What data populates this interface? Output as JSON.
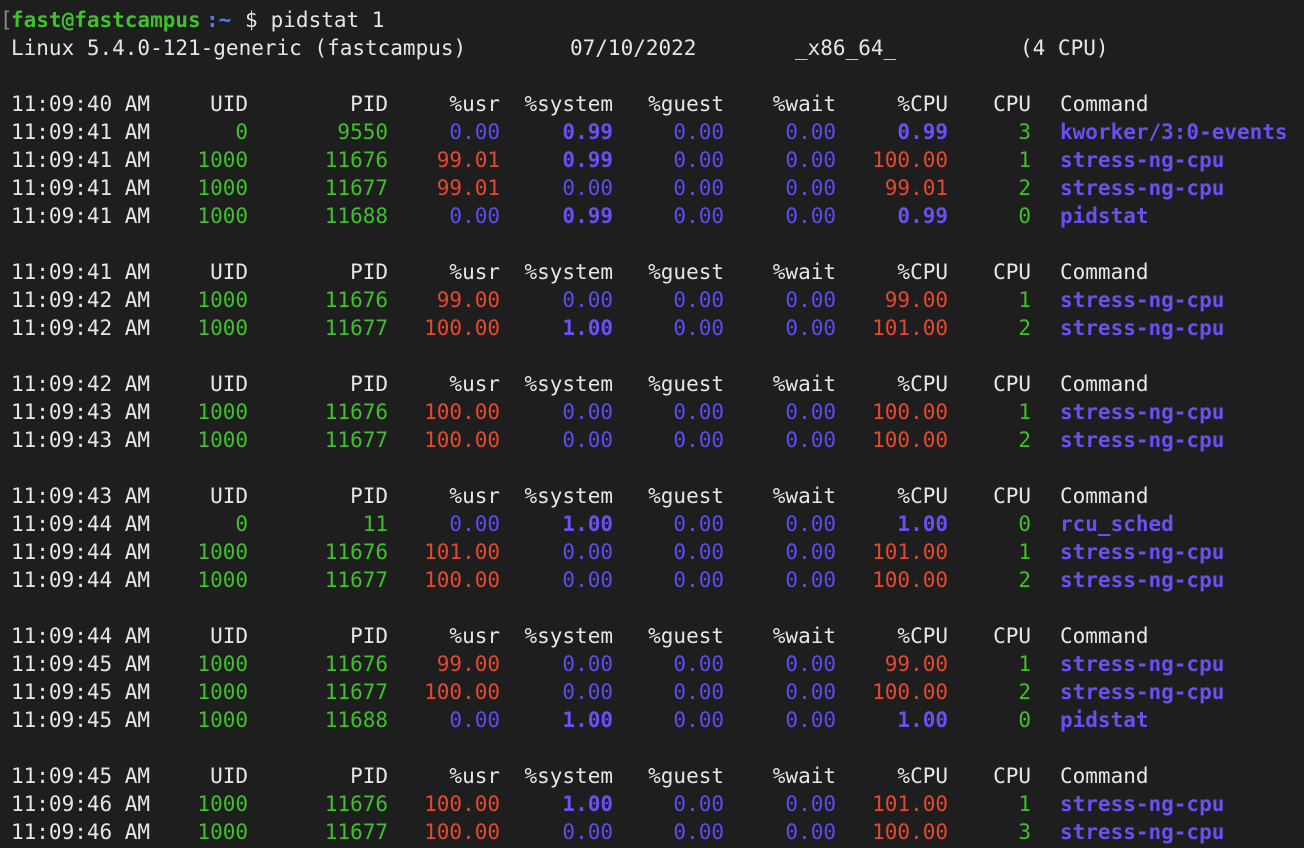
{
  "prompt": {
    "bracket": "[",
    "user_host": "fast@fastcampus",
    "path": ":~",
    "symbol": "$",
    "command": " pidstat 1"
  },
  "sysinfo": {
    "kernel": "Linux 5.4.0-121-generic (fastcampus)",
    "date": "07/10/2022",
    "arch": "_x86_64_",
    "cpus": "(4 CPU)"
  },
  "headers": {
    "uid": "UID",
    "pid": "PID",
    "usr": "%usr",
    "system": "%system",
    "guest": "%guest",
    "wait": "%wait",
    "pcpu": "%CPU",
    "cpu": "CPU",
    "command": "Command"
  },
  "colors": {
    "background": "#1e1e1e",
    "green": "#3fc12a",
    "red": "#e4492f",
    "blue": "#5b4ef0",
    "purple_bold": "#6a4ff5"
  },
  "blocks": [
    {
      "header_time": "11:09:40 AM",
      "rows": [
        {
          "time": "11:09:41 AM",
          "uid": "0",
          "pid": "9550",
          "usr": "0.00",
          "usr_c": "blue",
          "system": "0.99",
          "system_c": "blueb",
          "guest": "0.00",
          "wait": "0.00",
          "pcpu": "0.99",
          "pcpu_c": "blueb",
          "cpu": "3",
          "command": "kworker/3:0-events"
        },
        {
          "time": "11:09:41 AM",
          "uid": "1000",
          "pid": "11676",
          "usr": "99.01",
          "usr_c": "red",
          "system": "0.99",
          "system_c": "blueb",
          "guest": "0.00",
          "wait": "0.00",
          "pcpu": "100.00",
          "pcpu_c": "red",
          "cpu": "1",
          "command": "stress-ng-cpu"
        },
        {
          "time": "11:09:41 AM",
          "uid": "1000",
          "pid": "11677",
          "usr": "99.01",
          "usr_c": "red",
          "system": "0.00",
          "system_c": "blue",
          "guest": "0.00",
          "wait": "0.00",
          "pcpu": "99.01",
          "pcpu_c": "red",
          "cpu": "2",
          "command": "stress-ng-cpu"
        },
        {
          "time": "11:09:41 AM",
          "uid": "1000",
          "pid": "11688",
          "usr": "0.00",
          "usr_c": "blue",
          "system": "0.99",
          "system_c": "blueb",
          "guest": "0.00",
          "wait": "0.00",
          "pcpu": "0.99",
          "pcpu_c": "blueb",
          "cpu": "0",
          "command": "pidstat"
        }
      ]
    },
    {
      "header_time": "11:09:41 AM",
      "rows": [
        {
          "time": "11:09:42 AM",
          "uid": "1000",
          "pid": "11676",
          "usr": "99.00",
          "usr_c": "red",
          "system": "0.00",
          "system_c": "blue",
          "guest": "0.00",
          "wait": "0.00",
          "pcpu": "99.00",
          "pcpu_c": "red",
          "cpu": "1",
          "command": "stress-ng-cpu"
        },
        {
          "time": "11:09:42 AM",
          "uid": "1000",
          "pid": "11677",
          "usr": "100.00",
          "usr_c": "red",
          "system": "1.00",
          "system_c": "blueb",
          "guest": "0.00",
          "wait": "0.00",
          "pcpu": "101.00",
          "pcpu_c": "red",
          "cpu": "2",
          "command": "stress-ng-cpu"
        }
      ]
    },
    {
      "header_time": "11:09:42 AM",
      "rows": [
        {
          "time": "11:09:43 AM",
          "uid": "1000",
          "pid": "11676",
          "usr": "100.00",
          "usr_c": "red",
          "system": "0.00",
          "system_c": "blue",
          "guest": "0.00",
          "wait": "0.00",
          "pcpu": "100.00",
          "pcpu_c": "red",
          "cpu": "1",
          "command": "stress-ng-cpu"
        },
        {
          "time": "11:09:43 AM",
          "uid": "1000",
          "pid": "11677",
          "usr": "100.00",
          "usr_c": "red",
          "system": "0.00",
          "system_c": "blue",
          "guest": "0.00",
          "wait": "0.00",
          "pcpu": "100.00",
          "pcpu_c": "red",
          "cpu": "2",
          "command": "stress-ng-cpu"
        }
      ]
    },
    {
      "header_time": "11:09:43 AM",
      "rows": [
        {
          "time": "11:09:44 AM",
          "uid": "0",
          "pid": "11",
          "usr": "0.00",
          "usr_c": "blue",
          "system": "1.00",
          "system_c": "blueb",
          "guest": "0.00",
          "wait": "0.00",
          "pcpu": "1.00",
          "pcpu_c": "blueb",
          "cpu": "0",
          "command": "rcu_sched"
        },
        {
          "time": "11:09:44 AM",
          "uid": "1000",
          "pid": "11676",
          "usr": "101.00",
          "usr_c": "red",
          "system": "0.00",
          "system_c": "blue",
          "guest": "0.00",
          "wait": "0.00",
          "pcpu": "101.00",
          "pcpu_c": "red",
          "cpu": "1",
          "command": "stress-ng-cpu"
        },
        {
          "time": "11:09:44 AM",
          "uid": "1000",
          "pid": "11677",
          "usr": "100.00",
          "usr_c": "red",
          "system": "0.00",
          "system_c": "blue",
          "guest": "0.00",
          "wait": "0.00",
          "pcpu": "100.00",
          "pcpu_c": "red",
          "cpu": "2",
          "command": "stress-ng-cpu"
        }
      ]
    },
    {
      "header_time": "11:09:44 AM",
      "rows": [
        {
          "time": "11:09:45 AM",
          "uid": "1000",
          "pid": "11676",
          "usr": "99.00",
          "usr_c": "red",
          "system": "0.00",
          "system_c": "blue",
          "guest": "0.00",
          "wait": "0.00",
          "pcpu": "99.00",
          "pcpu_c": "red",
          "cpu": "1",
          "command": "stress-ng-cpu"
        },
        {
          "time": "11:09:45 AM",
          "uid": "1000",
          "pid": "11677",
          "usr": "100.00",
          "usr_c": "red",
          "system": "0.00",
          "system_c": "blue",
          "guest": "0.00",
          "wait": "0.00",
          "pcpu": "100.00",
          "pcpu_c": "red",
          "cpu": "2",
          "command": "stress-ng-cpu"
        },
        {
          "time": "11:09:45 AM",
          "uid": "1000",
          "pid": "11688",
          "usr": "0.00",
          "usr_c": "blue",
          "system": "1.00",
          "system_c": "blueb",
          "guest": "0.00",
          "wait": "0.00",
          "pcpu": "1.00",
          "pcpu_c": "blueb",
          "cpu": "0",
          "command": "pidstat"
        }
      ]
    },
    {
      "header_time": "11:09:45 AM",
      "rows": [
        {
          "time": "11:09:46 AM",
          "uid": "1000",
          "pid": "11676",
          "usr": "100.00",
          "usr_c": "red",
          "system": "1.00",
          "system_c": "blueb",
          "guest": "0.00",
          "wait": "0.00",
          "pcpu": "101.00",
          "pcpu_c": "red",
          "cpu": "1",
          "command": "stress-ng-cpu"
        },
        {
          "time": "11:09:46 AM",
          "uid": "1000",
          "pid": "11677",
          "usr": "100.00",
          "usr_c": "red",
          "system": "0.00",
          "system_c": "blue",
          "guest": "0.00",
          "wait": "0.00",
          "pcpu": "100.00",
          "pcpu_c": "red",
          "cpu": "3",
          "command": "stress-ng-cpu"
        }
      ]
    }
  ]
}
